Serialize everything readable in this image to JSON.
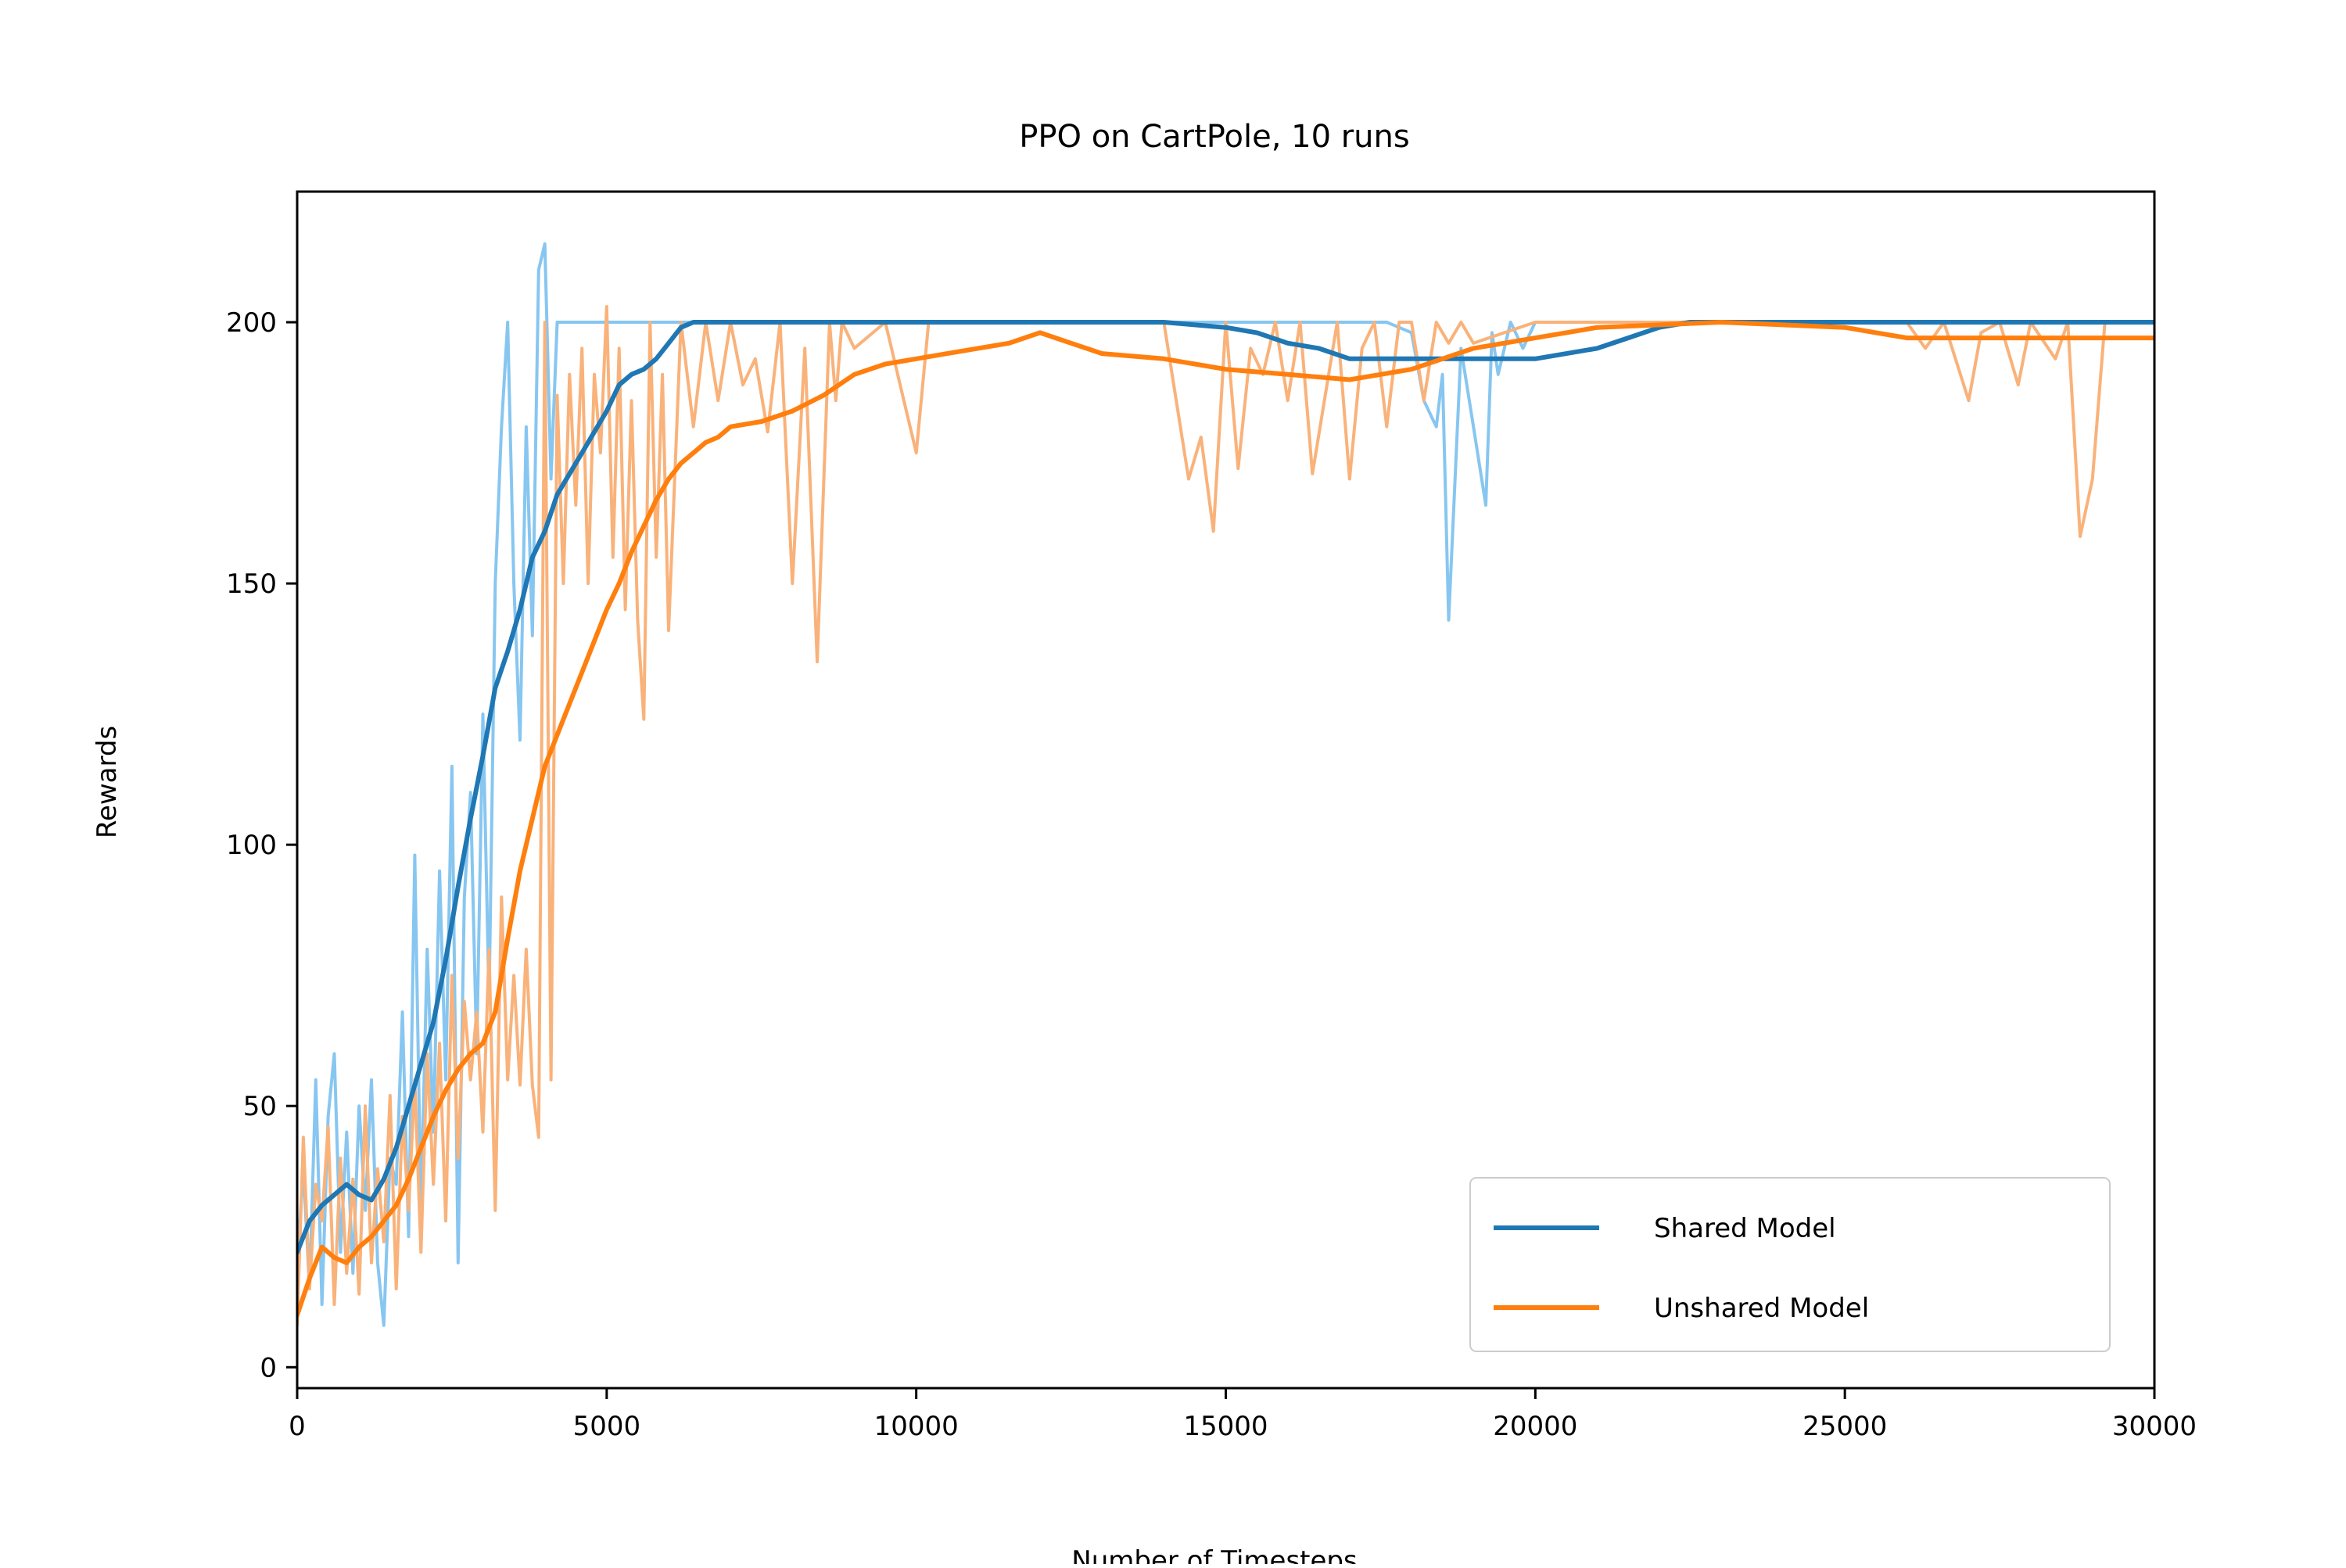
{
  "chart_data": {
    "type": "line",
    "title": "PPO on CartPole, 10 runs",
    "xlabel": "Number of Timesteps",
    "ylabel": "Rewards",
    "xlim": [
      0,
      30000
    ],
    "ylim": [
      -4,
      225
    ],
    "x_ticks": [
      0,
      5000,
      10000,
      15000,
      20000,
      25000,
      30000
    ],
    "x_tick_labels": [
      "0",
      "5000",
      "10000",
      "15000",
      "20000",
      "25000",
      "30000"
    ],
    "y_ticks": [
      0,
      50,
      100,
      150,
      200
    ],
    "y_tick_labels": [
      "0",
      "50",
      "100",
      "150",
      "200"
    ],
    "grid": false,
    "legend_position": "lower-right",
    "colors": {
      "shared": "#1f77b4",
      "shared_raw": "#87c6f0",
      "unshared": "#ff7f0e",
      "unshared_raw": "#f9b27a"
    },
    "series": [
      {
        "name": "Shared Model",
        "role": "smoothed",
        "x": [
          0,
          200,
          400,
          600,
          800,
          1000,
          1200,
          1400,
          1600,
          1800,
          2000,
          2200,
          2400,
          2600,
          2800,
          3000,
          3200,
          3400,
          3600,
          3800,
          4000,
          4200,
          4400,
          4600,
          4800,
          5000,
          5200,
          5400,
          5600,
          5800,
          6000,
          6200,
          6400,
          6600,
          6800,
          7000,
          8000,
          10000,
          12000,
          14000,
          14500,
          15000,
          15500,
          16000,
          16500,
          17000,
          17500,
          18000,
          19000,
          20000,
          21000,
          21500,
          22000,
          22500,
          23000,
          24000,
          26000,
          28000,
          30000
        ],
        "y": [
          22,
          28,
          31,
          33,
          35,
          33,
          32,
          36,
          42,
          50,
          58,
          66,
          78,
          92,
          105,
          117,
          130,
          137,
          145,
          155,
          160,
          167,
          171,
          175,
          179,
          183,
          188,
          190,
          191,
          193,
          196,
          199,
          200,
          200,
          200,
          200,
          200,
          200,
          200,
          200,
          199.5,
          199,
          198,
          196,
          195,
          193,
          193,
          193,
          193,
          193,
          195,
          197,
          199,
          200,
          200,
          200,
          200,
          200,
          200
        ]
      },
      {
        "name": "Unshared Model",
        "role": "smoothed",
        "x": [
          0,
          200,
          400,
          600,
          800,
          1000,
          1200,
          1400,
          1600,
          1800,
          2000,
          2200,
          2400,
          2600,
          2800,
          3000,
          3200,
          3400,
          3600,
          3800,
          4000,
          4200,
          4400,
          4600,
          4800,
          5000,
          5200,
          5400,
          5600,
          5800,
          6000,
          6200,
          6400,
          6600,
          6800,
          7000,
          7500,
          8000,
          8500,
          9000,
          9500,
          10000,
          10500,
          11000,
          11500,
          12000,
          12500,
          13000,
          14000,
          15000,
          16000,
          17000,
          17500,
          18000,
          18500,
          19000,
          20000,
          20500,
          21000,
          22000,
          23000,
          24000,
          25000,
          25500,
          26000,
          27000,
          28000,
          29000,
          30000
        ],
        "y": [
          10,
          17,
          23,
          21,
          20,
          23,
          25,
          28,
          31,
          36,
          42,
          48,
          53,
          57,
          60,
          62,
          68,
          82,
          95,
          105,
          115,
          121,
          127,
          133,
          139,
          145,
          150,
          156,
          161,
          166,
          170,
          173,
          175,
          177,
          178,
          180,
          181,
          183,
          186,
          190,
          192,
          193,
          194,
          195,
          196,
          198,
          196,
          194,
          193,
          191,
          190,
          189,
          190,
          191,
          193,
          195,
          197,
          198,
          199,
          199.5,
          200,
          199.5,
          199,
          198,
          197,
          197,
          197,
          197,
          197
        ]
      },
      {
        "name": "",
        "role": "raw-shared",
        "x": [
          0,
          100,
          200,
          300,
          400,
          500,
          600,
          700,
          800,
          900,
          1000,
          1100,
          1200,
          1300,
          1400,
          1500,
          1600,
          1700,
          1800,
          1900,
          2000,
          2100,
          2200,
          2300,
          2400,
          2500,
          2600,
          2700,
          2800,
          2900,
          3000,
          3100,
          3200,
          3300,
          3400,
          3500,
          3600,
          3700,
          3800,
          3900,
          4000,
          4100,
          4200,
          4300,
          5000,
          6000,
          7000,
          8000,
          10000,
          12000,
          14000,
          15000,
          15400,
          15600,
          16000,
          17000,
          17400,
          17600,
          18000,
          18200,
          18400,
          18500,
          18600,
          18800,
          19000,
          19200,
          19300,
          19400,
          19600,
          19800,
          20000,
          25000,
          30000
        ],
        "y": [
          20,
          38,
          15,
          55,
          12,
          48,
          60,
          22,
          45,
          18,
          50,
          30,
          55,
          20,
          8,
          40,
          35,
          68,
          25,
          98,
          30,
          80,
          45,
          95,
          55,
          115,
          20,
          90,
          110,
          60,
          125,
          70,
          150,
          180,
          200,
          150,
          120,
          180,
          140,
          210,
          215,
          170,
          200,
          200,
          200,
          200,
          200,
          200,
          200,
          200,
          200,
          200,
          200,
          200,
          200,
          200,
          200,
          200,
          198,
          185,
          180,
          190,
          143,
          195,
          180,
          165,
          198,
          190,
          200,
          195,
          200,
          200,
          200
        ]
      },
      {
        "name": "",
        "role": "raw-unshared",
        "x": [
          0,
          100,
          200,
          300,
          400,
          500,
          600,
          700,
          800,
          900,
          1000,
          1100,
          1200,
          1300,
          1400,
          1500,
          1600,
          1700,
          1800,
          1900,
          2000,
          2100,
          2200,
          2300,
          2400,
          2500,
          2600,
          2700,
          2800,
          2900,
          3000,
          3100,
          3200,
          3300,
          3400,
          3500,
          3600,
          3700,
          3800,
          3900,
          4000,
          4100,
          4200,
          4300,
          4400,
          4500,
          4600,
          4700,
          4800,
          4900,
          5000,
          5100,
          5200,
          5300,
          5400,
          5500,
          5600,
          5700,
          5800,
          5900,
          6000,
          6200,
          6400,
          6600,
          6800,
          7000,
          7200,
          7400,
          7600,
          7800,
          8000,
          8200,
          8400,
          8600,
          8700,
          8800,
          9000,
          9500,
          10000,
          10200,
          10400,
          11000,
          12000,
          14000,
          14400,
          14600,
          14800,
          15000,
          15200,
          15400,
          15600,
          15800,
          16000,
          16200,
          16400,
          16800,
          17000,
          17200,
          17400,
          17600,
          17800,
          18000,
          18200,
          18400,
          18600,
          18800,
          19000,
          20000,
          25000,
          26000,
          26300,
          26600,
          27000,
          27200,
          27500,
          27800,
          28000,
          28400,
          28600,
          28800,
          29000,
          29200,
          30000
        ],
        "y": [
          8,
          44,
          15,
          35,
          28,
          46,
          12,
          40,
          18,
          36,
          14,
          50,
          20,
          38,
          24,
          52,
          15,
          48,
          30,
          55,
          22,
          60,
          35,
          62,
          28,
          75,
          40,
          70,
          55,
          68,
          45,
          80,
          30,
          90,
          55,
          75,
          54,
          80,
          54,
          44,
          200,
          55,
          186,
          150,
          190,
          165,
          195,
          150,
          190,
          175,
          203,
          155,
          195,
          145,
          185,
          143,
          124,
          200,
          155,
          190,
          141,
          200,
          180,
          200,
          185,
          200,
          188,
          193,
          179,
          200,
          150,
          195,
          135,
          200,
          185,
          200,
          195,
          200,
          175,
          200,
          200,
          200,
          200,
          200,
          170,
          178,
          160,
          200,
          172,
          195,
          190,
          200,
          185,
          200,
          171,
          200,
          170,
          195,
          200,
          180,
          200,
          200,
          185,
          200,
          196,
          200,
          196,
          200,
          200,
          200,
          195,
          200,
          185,
          198,
          200,
          188,
          200,
          193,
          200,
          159,
          170,
          200,
          200
        ]
      }
    ]
  }
}
